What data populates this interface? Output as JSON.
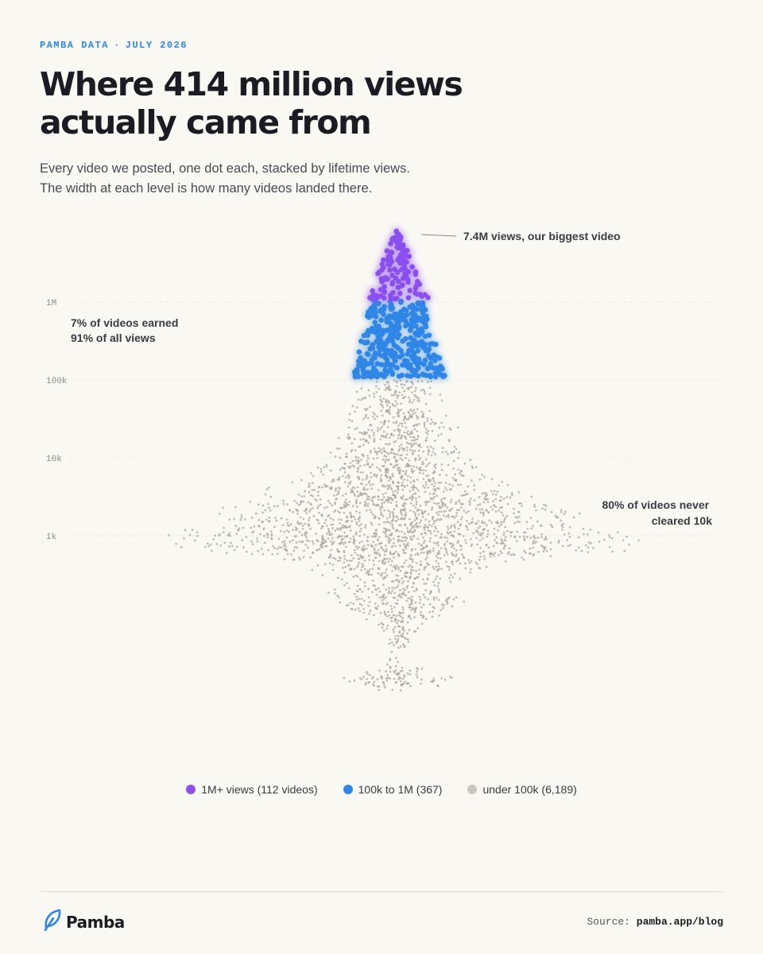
{
  "header": {
    "eyebrow_left": "PAMBA DATA",
    "eyebrow_sep": "·",
    "eyebrow_right": "JULY 2026",
    "title": "Where 414 million views actually came from",
    "subtitle_line1": "Every video we posted, one dot each, stacked by lifetime views.",
    "subtitle_line2": "The width at each level is how many videos landed there."
  },
  "colors": {
    "accent": "#2f86e6",
    "purple": "#8b4ff0",
    "blue": "#2f86e6",
    "gray": "#b9b6ac",
    "background": "#f9f8f3"
  },
  "chart_data": {
    "type": "scatter",
    "subtype": "beeswarm",
    "y_scale": "log",
    "y_ticks": [
      "1M",
      "100k",
      "10k",
      "1k"
    ],
    "y_tick_values": [
      1000000,
      100000,
      10000,
      1000
    ],
    "ylim": [
      10,
      8000000
    ],
    "total_views": 414000000,
    "groups": [
      {
        "name": "1M+ views",
        "count": 112,
        "min_views": 1000000,
        "max_views": 7400000,
        "color": "#8b4ff0"
      },
      {
        "name": "100k to 1M",
        "count": 367,
        "min_views": 100000,
        "max_views": 1000000,
        "color": "#2f86e6"
      },
      {
        "name": "under 100k",
        "count": 6189,
        "min_views": 10,
        "max_views": 100000,
        "color": "#b9b6ac"
      }
    ],
    "annotations": {
      "top_video": "7.4M views, our biggest video",
      "top_share_line1": "7% of videos earned",
      "top_share_line2": "91% of all views",
      "bottom_share_line1": "80% of videos never",
      "bottom_share_line2": "cleared 10k"
    },
    "max_views": 7400000
  },
  "legend": [
    {
      "label": "1M+ views (112 videos)",
      "color": "#8b4ff0"
    },
    {
      "label": "100k to 1M (367)",
      "color": "#2f86e6"
    },
    {
      "label": "under 100k (6,189)",
      "color": "#c9c6bc"
    }
  ],
  "footer": {
    "brand": "Pamba",
    "brand_icon": "leaf-icon",
    "source_label": "Source:",
    "source_value": "pamba.app/blog"
  }
}
